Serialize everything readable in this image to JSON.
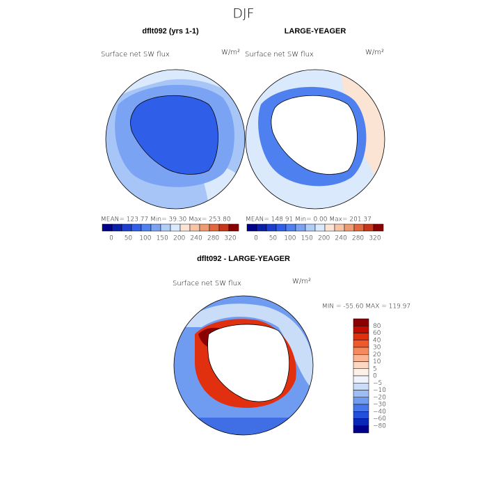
{
  "title": "DJF",
  "panels": [
    {
      "title": "dflt092 (yrs 1-1)",
      "variable": "Surface net SW flux",
      "units": "W/m²",
      "stats": "MEAN= 123.77   Min=   39.30   Max= 253.80",
      "colorbar": {
        "labels": [
          "0",
          "50",
          "100",
          "150",
          "200",
          "240",
          "280",
          "320"
        ],
        "colors": [
          "#00008b",
          "#0a1fa8",
          "#1c3fd0",
          "#2f5fe8",
          "#4f80f0",
          "#7aa3f4",
          "#b1cdf8",
          "#dbe9fc",
          "#fce4d4",
          "#f8c4a8",
          "#f09a72",
          "#e2673e",
          "#c8361a",
          "#8b0000"
        ]
      }
    },
    {
      "title": "LARGE-YEAGER",
      "variable": "Surface net SW flux",
      "units": "W/m²",
      "stats": "MEAN= 148.91   Min=    0.00   Max= 201.37",
      "colorbar": {
        "labels": [
          "0",
          "50",
          "100",
          "150",
          "200",
          "240",
          "280",
          "320"
        ],
        "colors": [
          "#00008b",
          "#0a1fa8",
          "#1c3fd0",
          "#2f5fe8",
          "#4f80f0",
          "#7aa3f4",
          "#b1cdf8",
          "#dbe9fc",
          "#fce4d4",
          "#f8c4a8",
          "#f09a72",
          "#e2673e",
          "#c8361a",
          "#8b0000"
        ]
      }
    }
  ],
  "difference": {
    "title": "dflt092 - LARGE-YEAGER",
    "variable": "Surface net SW flux",
    "units": "W/m²",
    "stats": "MIN = -55.60 MAX = 119.97",
    "colorbar": {
      "labels": [
        "80",
        "60",
        "40",
        "30",
        "20",
        "10",
        "5",
        "0",
        "−5",
        "−10",
        "−20",
        "−30",
        "−40",
        "−60",
        "−80"
      ],
      "colors": [
        "#8b0000",
        "#c00d00",
        "#e03010",
        "#f05a2a",
        "#f58a5e",
        "#f9b594",
        "#fcd8c2",
        "#fdf0e6",
        "#eef3fc",
        "#c9dcf8",
        "#9dbdf4",
        "#6f9bf0",
        "#4676ea",
        "#2250dc",
        "#0a28b8",
        "#00008b"
      ]
    }
  }
}
